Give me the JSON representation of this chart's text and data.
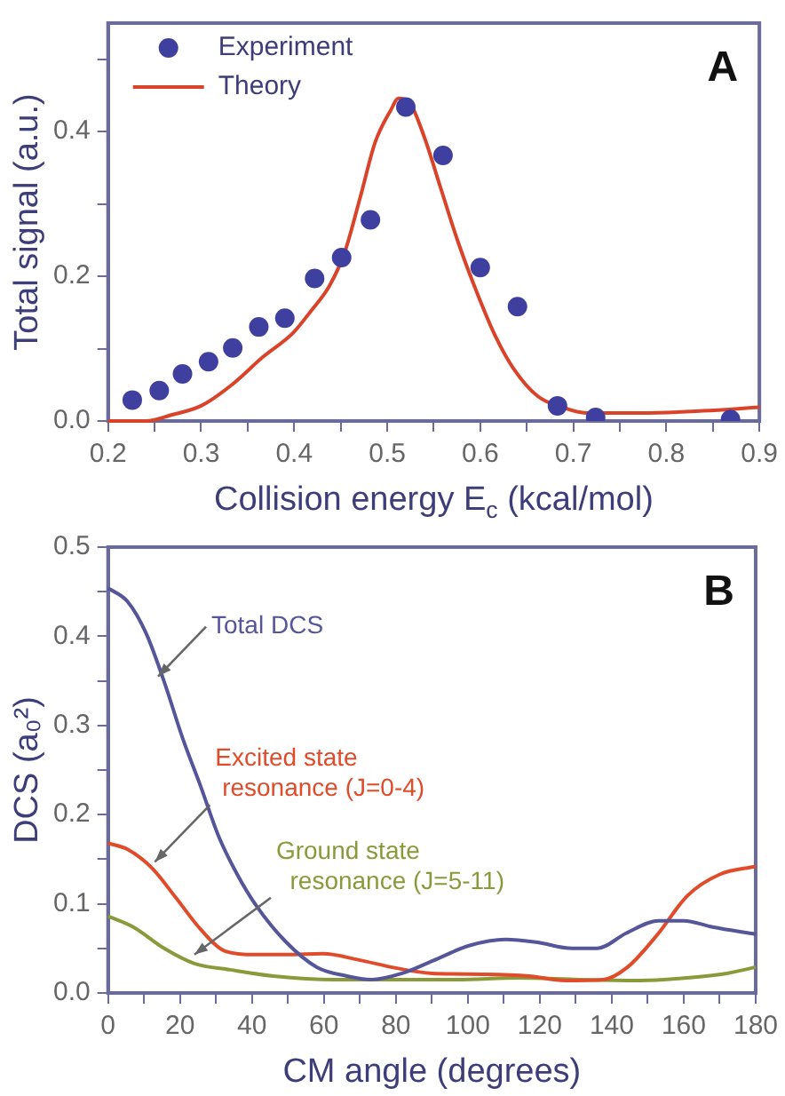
{
  "chart_data": [
    {
      "type": "scatter",
      "xlabel": "Collision energy E$_{c}$ (kcal/mol)",
      "ylabel": "Total signal (a.u.)",
      "annotations": [
        "A"
      ],
      "legend": "top left",
      "xlim": [
        0.2,
        0.9
      ],
      "xticks": [
        0.2,
        {
          "value": 0.25,
          "label": null
        },
        0.3,
        {
          "value": 0.35,
          "label": null
        },
        0.4,
        {
          "value": 0.45,
          "label": null
        },
        0.5,
        {
          "value": 0.55,
          "label": null
        },
        0.6,
        {
          "value": 0.65,
          "label": null
        },
        0.7,
        {
          "value": 0.75,
          "label": null
        },
        0.8,
        {
          "value": 0.85,
          "label": null
        },
        0.9
      ],
      "ylim": [
        0,
        0.55
      ],
      "yticks": [
        {
          "value": 0,
          "label": "0.0"
        },
        {
          "value": 0.1,
          "label": null
        },
        0.2,
        {
          "value": 0.3,
          "label": null
        },
        0.4,
        {
          "value": 0.5,
          "label": null
        }
      ],
      "series": [
        {
          "name": "Experiment",
          "type": "scatter",
          "marker": "circle",
          "color": "#3f3f9f",
          "x": [
            0.226,
            0.255,
            0.28,
            0.308,
            0.334,
            0.362,
            0.39,
            0.422,
            0.451,
            0.482,
            0.52,
            0.56,
            0.6,
            0.64,
            0.683,
            0.724,
            0.869
          ],
          "values": [
            0.029,
            0.042,
            0.065,
            0.082,
            0.101,
            0.13,
            0.142,
            0.197,
            0.226,
            0.278,
            0.434,
            0.367,
            0.212,
            0.158,
            0.021,
            0.005,
            0.002
          ]
        },
        {
          "name": "Theory",
          "type": "line",
          "marker": "none",
          "color": "#d9432a",
          "x": [
            0.2,
            0.241,
            0.267,
            0.3,
            0.333,
            0.366,
            0.399,
            0.418,
            0.438,
            0.454,
            0.471,
            0.487,
            0.504,
            0.512,
            0.524,
            0.54,
            0.557,
            0.576,
            0.596,
            0.616,
            0.636,
            0.662,
            0.688,
            0.714,
            0.773,
            0.839,
            0.9
          ],
          "values": [
            0,
            0,
            0.008,
            0.021,
            0.05,
            0.088,
            0.122,
            0.152,
            0.187,
            0.232,
            0.309,
            0.385,
            0.43,
            0.446,
            0.44,
            0.392,
            0.324,
            0.248,
            0.179,
            0.118,
            0.072,
            0.034,
            0.019,
            0.011,
            0.011,
            0.014,
            0.019
          ]
        }
      ]
    },
    {
      "type": "line",
      "xlabel": "CM angle (degrees)",
      "ylabel": "DCS (a₀²)",
      "annotations": [
        "B",
        {
          "text": "Total DCS",
          "x": 13.9,
          "y": 0.355
        },
        {
          "text": "Excited state\n resonance (J=0-4)",
          "x": 13,
          "y": 0.147
        },
        {
          "text": "Ground state\n  resonance (J=5-11)",
          "x": 24,
          "y": 0.043
        }
      ],
      "xlim": [
        0,
        180
      ],
      "xticks": [
        0,
        {
          "value": 10,
          "label": null
        },
        20,
        {
          "value": 30,
          "label": null
        },
        40,
        {
          "value": 50,
          "label": null
        },
        60,
        {
          "value": 70,
          "label": null
        },
        80,
        {
          "value": 90,
          "label": null
        },
        100,
        {
          "value": 110,
          "label": null
        },
        120,
        {
          "value": 130,
          "label": null
        },
        140,
        {
          "value": 150,
          "label": null
        },
        160,
        {
          "value": 170,
          "label": null
        },
        180
      ],
      "ylim": [
        0,
        0.5
      ],
      "yticks": [
        {
          "value": 0,
          "label": "0.0"
        },
        {
          "value": 0.05,
          "label": null
        },
        0.1,
        {
          "value": 0.15,
          "label": null
        },
        0.2,
        {
          "value": 0.25,
          "label": null
        },
        0.3,
        {
          "value": 0.35,
          "label": null
        },
        0.4,
        {
          "value": 0.45,
          "label": null
        },
        0.5
      ],
      "series": [
        {
          "color": "#55559a",
          "x": [
            0,
            5.4,
            10.5,
            15.6,
            20.7,
            25.8,
            30.8,
            35.9,
            41,
            49.5,
            58,
            66.4,
            73.2,
            81.7,
            90.2,
            100.3,
            110.5,
            119,
            129,
            136,
            144,
            153,
            160,
            168,
            180
          ],
          "values": [
            0.454,
            0.439,
            0.404,
            0.349,
            0.286,
            0.231,
            0.175,
            0.133,
            0.099,
            0.057,
            0.029,
            0.019,
            0.015,
            0.022,
            0.036,
            0.053,
            0.06,
            0.057,
            0.05,
            0.05,
            0.067,
            0.081,
            0.081,
            0.074,
            0.066
          ]
        },
        {
          "color": "#e04b2a",
          "x": [
            0,
            5.4,
            12.2,
            19,
            25.8,
            32.5,
            41,
            49.5,
            59.7,
            69.8,
            80,
            90,
            105,
            117,
            127,
            137.6,
            144.4,
            153,
            161,
            170,
            180
          ],
          "values": [
            0.168,
            0.161,
            0.14,
            0.106,
            0.071,
            0.047,
            0.043,
            0.043,
            0.044,
            0.037,
            0.028,
            0.022,
            0.021,
            0.019,
            0.014,
            0.015,
            0.029,
            0.067,
            0.109,
            0.133,
            0.142
          ]
        },
        {
          "color": "#8a9a3a",
          "x": [
            0,
            7,
            15.6,
            24,
            34,
            46,
            63,
            80,
            97,
            114,
            131,
            148,
            161,
            172,
            180
          ],
          "values": [
            0.086,
            0.074,
            0.05,
            0.033,
            0.026,
            0.019,
            0.015,
            0.015,
            0.015,
            0.017,
            0.015,
            0.014,
            0.017,
            0.022,
            0.029
          ]
        }
      ]
    }
  ]
}
